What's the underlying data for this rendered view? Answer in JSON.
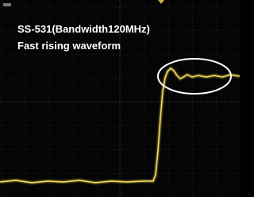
{
  "annotation": {
    "title": "SS-531(Bandwidth120MHz)",
    "subtitle": "Fast rising waveform"
  }
}
